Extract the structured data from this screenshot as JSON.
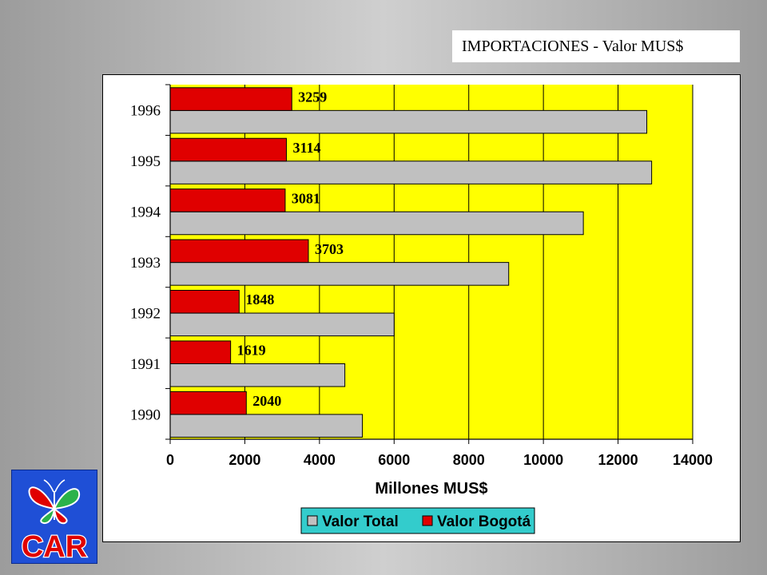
{
  "header": {
    "title": "IMPORTACIONES - Valor MUS$"
  },
  "logo": {
    "text": "CAR",
    "icon": "butterfly-icon"
  },
  "colors": {
    "plot_bg": "#ffff00",
    "valor_total": "#c0c0c0",
    "valor_bogota": "#e00000",
    "legend_bg": "#33cccc"
  },
  "chart_data": {
    "type": "bar",
    "orientation": "horizontal",
    "title": "",
    "xlabel": "Millones MUS$",
    "ylabel": "",
    "xlim": [
      0,
      14000
    ],
    "x_ticks": [
      0,
      2000,
      4000,
      6000,
      8000,
      10000,
      12000,
      14000
    ],
    "grid": "vertical",
    "legend_placement": "bottom",
    "categories": [
      "1990",
      "1991",
      "1992",
      "1993",
      "1994",
      "1995",
      "1996"
    ],
    "series": [
      {
        "name": "Valor Total",
        "color": "#c0c0c0",
        "values": [
          5150,
          4680,
          6000,
          9070,
          11070,
          12900,
          12770
        ]
      },
      {
        "name": "Valor Bogotá",
        "color": "#e00000",
        "values": [
          2040,
          1619,
          1848,
          3703,
          3081,
          3114,
          3259
        ],
        "data_labels": [
          "2040",
          "1619",
          "1848",
          "3703",
          "3081",
          "3114",
          "3259"
        ]
      }
    ]
  }
}
